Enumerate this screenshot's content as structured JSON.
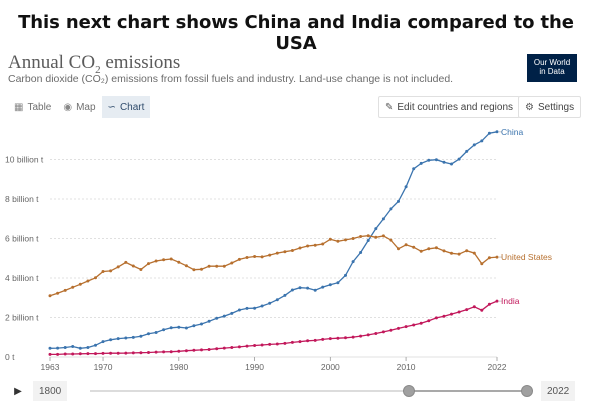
{
  "headline": "This next chart shows China and India compared to the USA",
  "title_main": "Annual CO",
  "title_sub2": "2",
  "title_rest": " emissions",
  "subtitle": "Carbon dioxide (CO₂) emissions from fossil fuels and industry. Land-use change is not included.",
  "logo": {
    "line1": "Our World",
    "line2": "in Data",
    "bg": "#002147"
  },
  "tabs": [
    {
      "label": "Table",
      "icon": "table-icon"
    },
    {
      "label": "Map",
      "icon": "globe-icon"
    },
    {
      "label": "Chart",
      "icon": "line-chart-icon",
      "active": true
    }
  ],
  "buttons": {
    "edit": "Edit countries and regions",
    "settings": "Settings"
  },
  "timeline": {
    "start": "1800",
    "end": "2022",
    "selected_start": 1963,
    "selected_end": 2022
  },
  "chart_data": {
    "type": "line",
    "title": "Annual CO₂ emissions",
    "subtitle": "Carbon dioxide (CO₂) emissions from fossil fuels and industry. Land-use change is not included.",
    "xlabel": "",
    "ylabel": "",
    "xlim": [
      1963,
      2022
    ],
    "ylim": [
      0,
      12
    ],
    "x_ticks": [
      "1963",
      "1970",
      "1980",
      "1990",
      "2000",
      "2010",
      "2022"
    ],
    "x_tick_values": [
      1963,
      1970,
      1980,
      1990,
      2000,
      2010,
      2022
    ],
    "y_ticks": [
      "0 t",
      "2 billion t",
      "4 billion t",
      "6 billion t",
      "8 billion t",
      "10 billion t"
    ],
    "y_tick_values": [
      0,
      2,
      4,
      6,
      8,
      10
    ],
    "grid": "horizontal-dotted",
    "legend": "inline-right",
    "x": [
      1963,
      1964,
      1965,
      1966,
      1967,
      1968,
      1969,
      1970,
      1971,
      1972,
      1973,
      1974,
      1975,
      1976,
      1977,
      1978,
      1979,
      1980,
      1981,
      1982,
      1983,
      1984,
      1985,
      1986,
      1987,
      1988,
      1989,
      1990,
      1991,
      1992,
      1993,
      1994,
      1995,
      1996,
      1997,
      1998,
      1999,
      2000,
      2001,
      2002,
      2003,
      2004,
      2005,
      2006,
      2007,
      2008,
      2009,
      2010,
      2011,
      2012,
      2013,
      2014,
      2015,
      2016,
      2017,
      2018,
      2019,
      2020,
      2021,
      2022
    ],
    "series": [
      {
        "name": "China",
        "color": "#3b74ae",
        "values": [
          0.44,
          0.45,
          0.48,
          0.53,
          0.44,
          0.48,
          0.59,
          0.78,
          0.87,
          0.93,
          0.96,
          0.99,
          1.05,
          1.18,
          1.24,
          1.38,
          1.48,
          1.51,
          1.47,
          1.58,
          1.67,
          1.81,
          1.96,
          2.07,
          2.21,
          2.38,
          2.46,
          2.47,
          2.58,
          2.72,
          2.9,
          3.12,
          3.39,
          3.51,
          3.49,
          3.38,
          3.54,
          3.66,
          3.76,
          4.13,
          4.83,
          5.29,
          5.9,
          6.5,
          6.99,
          7.5,
          7.88,
          8.62,
          9.53,
          9.8,
          9.96,
          9.99,
          9.86,
          9.77,
          10.02,
          10.41,
          10.74,
          10.94,
          11.33,
          11.4
        ]
      },
      {
        "name": "United States",
        "color": "#b7702f",
        "values": [
          3.1,
          3.23,
          3.37,
          3.53,
          3.68,
          3.85,
          4.01,
          4.33,
          4.36,
          4.56,
          4.79,
          4.61,
          4.43,
          4.73,
          4.86,
          4.92,
          4.96,
          4.8,
          4.62,
          4.42,
          4.44,
          4.6,
          4.6,
          4.6,
          4.76,
          4.94,
          5.04,
          5.09,
          5.07,
          5.16,
          5.26,
          5.33,
          5.39,
          5.52,
          5.62,
          5.66,
          5.72,
          5.96,
          5.86,
          5.93,
          6.0,
          6.1,
          6.14,
          6.06,
          6.13,
          5.92,
          5.48,
          5.68,
          5.56,
          5.35,
          5.48,
          5.53,
          5.37,
          5.25,
          5.21,
          5.38,
          5.26,
          4.72,
          5.03,
          5.06
        ]
      },
      {
        "name": "India",
        "color": "#c2185b",
        "values": [
          0.13,
          0.13,
          0.15,
          0.15,
          0.16,
          0.17,
          0.17,
          0.18,
          0.19,
          0.19,
          0.2,
          0.21,
          0.22,
          0.23,
          0.25,
          0.26,
          0.27,
          0.29,
          0.32,
          0.34,
          0.36,
          0.38,
          0.42,
          0.45,
          0.48,
          0.51,
          0.55,
          0.58,
          0.61,
          0.64,
          0.66,
          0.69,
          0.74,
          0.78,
          0.82,
          0.84,
          0.89,
          0.93,
          0.95,
          0.97,
          1.01,
          1.06,
          1.12,
          1.19,
          1.27,
          1.35,
          1.45,
          1.54,
          1.62,
          1.71,
          1.84,
          1.98,
          2.06,
          2.17,
          2.28,
          2.4,
          2.54,
          2.37,
          2.67,
          2.83
        ]
      }
    ]
  }
}
